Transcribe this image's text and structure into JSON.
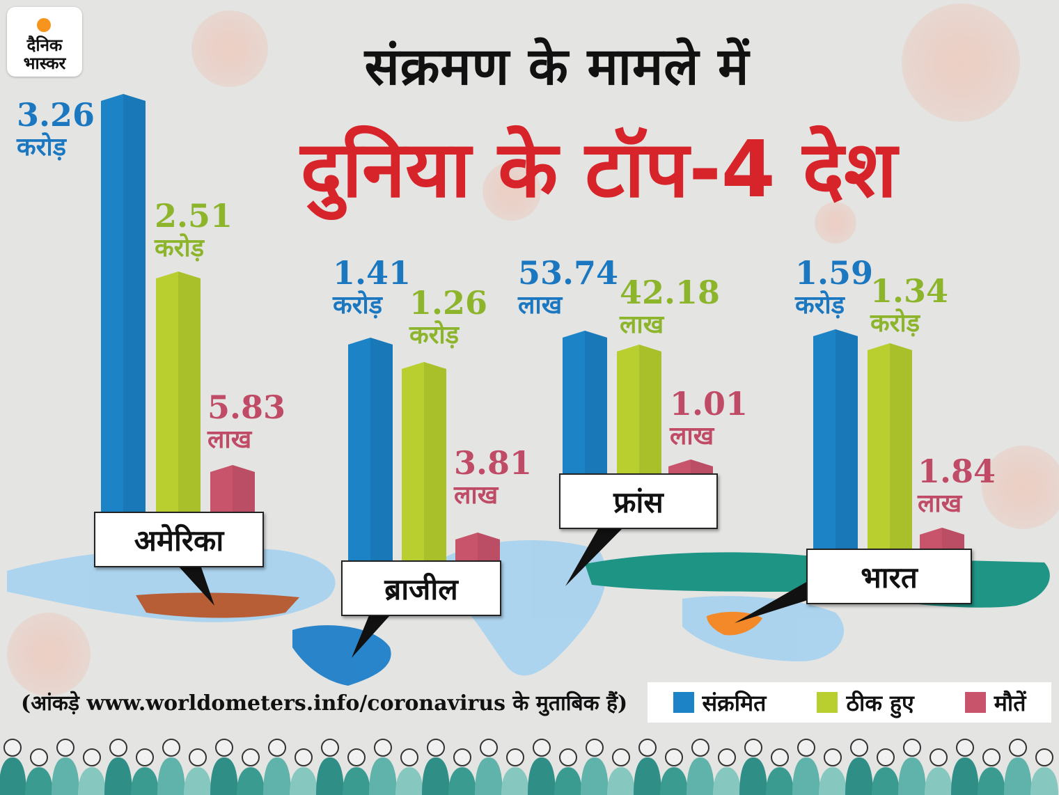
{
  "brand": {
    "logo_line1": "दैनिक",
    "logo_line2": "भास्कर",
    "logo_color": "#f7941d"
  },
  "title": {
    "line1": "संक्रमण के मामले में",
    "line2": "दुनिया के टॉप-4 देश"
  },
  "colors": {
    "infected": "#1b83c6",
    "recovered": "#b9cf2f",
    "deaths": "#c8546c",
    "title_red": "#d7242b",
    "title_dark": "#111111",
    "value_blue": "#1b78c0",
    "value_green": "#8db52c",
    "value_pink": "#c04b66"
  },
  "legend": [
    {
      "label": "संक्रमित",
      "color": "#1b83c6"
    },
    {
      "label": "ठीक हुए",
      "color": "#b9cf2f"
    },
    {
      "label": "मौतें",
      "color": "#c8546c"
    }
  ],
  "source_note": "(आंकड़े www.worldometers.info/coronavirus के मुताबिक हैं)",
  "chart_data": {
    "type": "bar",
    "title": "दुनिया के टॉप-4 देश",
    "subtitle": "संक्रमण के मामले में",
    "categories": [
      "अमेरिका",
      "ब्राजील",
      "फ्रांस",
      "भारत"
    ],
    "series": [
      {
        "name": "संक्रमित",
        "values_in_lakh": [
          326,
          141,
          53.74,
          159
        ],
        "labels": [
          {
            "value": "3.26",
            "unit": "करोड़"
          },
          {
            "value": "1.41",
            "unit": "करोड़"
          },
          {
            "value": "53.74",
            "unit": "लाख"
          },
          {
            "value": "1.59",
            "unit": "करोड़"
          }
        ]
      },
      {
        "name": "ठीक हुए",
        "values_in_lakh": [
          251,
          126,
          42.18,
          134
        ],
        "labels": [
          {
            "value": "2.51",
            "unit": "करोड़"
          },
          {
            "value": "1.26",
            "unit": "करोड़"
          },
          {
            "value": "42.18",
            "unit": "लाख"
          },
          {
            "value": "1.34",
            "unit": "करोड़"
          }
        ]
      },
      {
        "name": "मौतें",
        "values_in_lakh": [
          5.83,
          3.81,
          1.01,
          1.84
        ],
        "labels": [
          {
            "value": "5.83",
            "unit": "लाख"
          },
          {
            "value": "3.81",
            "unit": "लाख"
          },
          {
            "value": "1.01",
            "unit": "लाख"
          },
          {
            "value": "1.84",
            "unit": "लाख"
          }
        ]
      }
    ],
    "grid": false,
    "legend_position": "bottom-right"
  }
}
